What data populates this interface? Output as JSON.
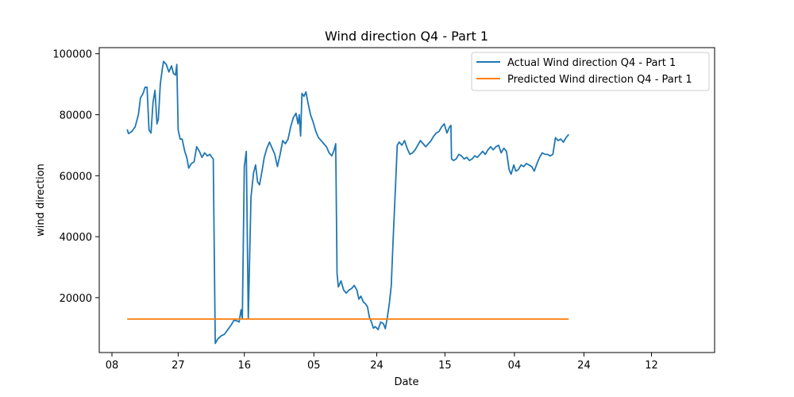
{
  "chart_data": {
    "type": "line",
    "title": "Wind direction Q4 - Part 1",
    "xlabel": "Date",
    "ylabel": "wind direction",
    "x_tick_labels": [
      "08",
      "27",
      "16",
      "05",
      "24",
      "15",
      "04",
      "24",
      "12"
    ],
    "y_tick_labels": [
      "20000",
      "40000",
      "60000",
      "80000",
      "100000"
    ],
    "ylim": [
      2000,
      102000
    ],
    "x_domain": [
      0,
      83
    ],
    "x_tick_positions": [
      0,
      10,
      20,
      30.5,
      40,
      50.3,
      60.8,
      71.3,
      81.5
    ],
    "y_ticks": [
      20000,
      40000,
      60000,
      80000,
      100000
    ],
    "grid": false,
    "legend_position": "top-right",
    "series": [
      {
        "name": "Actual Wind direction Q4 - Part 1",
        "color": "#1f77b4",
        "points": [
          [
            2.3,
            75200
          ],
          [
            2.5,
            73800
          ],
          [
            3.0,
            74500
          ],
          [
            3.5,
            76000
          ],
          [
            4.0,
            80000
          ],
          [
            4.3,
            85500
          ],
          [
            4.7,
            87000
          ],
          [
            5.0,
            89000
          ],
          [
            5.3,
            89000
          ],
          [
            5.6,
            75000
          ],
          [
            5.9,
            74000
          ],
          [
            6.2,
            84000
          ],
          [
            6.5,
            88000
          ],
          [
            6.8,
            77000
          ],
          [
            7.0,
            78500
          ],
          [
            7.3,
            90000
          ],
          [
            7.6,
            95000
          ],
          [
            7.8,
            97500
          ],
          [
            8.2,
            96500
          ],
          [
            8.6,
            94000
          ],
          [
            9.0,
            96000
          ],
          [
            9.3,
            93500
          ],
          [
            9.6,
            93000
          ],
          [
            9.8,
            96500
          ],
          [
            10.0,
            75000
          ],
          [
            10.3,
            72000
          ],
          [
            10.6,
            72000
          ],
          [
            11.0,
            68000
          ],
          [
            11.3,
            66000
          ],
          [
            11.6,
            62500
          ],
          [
            12.0,
            64000
          ],
          [
            12.4,
            64500
          ],
          [
            12.8,
            69500
          ],
          [
            13.2,
            68000
          ],
          [
            13.6,
            66000
          ],
          [
            14.0,
            67500
          ],
          [
            14.4,
            66500
          ],
          [
            14.8,
            67000
          ],
          [
            15.1,
            66000
          ],
          [
            15.3,
            65500
          ],
          [
            15.6,
            5000
          ],
          [
            16.0,
            6500
          ],
          [
            16.5,
            7500
          ],
          [
            17.0,
            8000
          ],
          [
            17.5,
            9500
          ],
          [
            18.0,
            11000
          ],
          [
            18.4,
            12500
          ],
          [
            18.8,
            12500
          ],
          [
            19.2,
            12000
          ],
          [
            19.5,
            16000
          ],
          [
            19.7,
            13000
          ],
          [
            20.0,
            63000
          ],
          [
            20.3,
            68000
          ],
          [
            20.6,
            13000
          ],
          [
            21.0,
            53000
          ],
          [
            21.4,
            61000
          ],
          [
            21.7,
            63500
          ],
          [
            22.0,
            58000
          ],
          [
            22.3,
            57000
          ],
          [
            22.7,
            62000
          ],
          [
            23.0,
            66000
          ],
          [
            23.4,
            69000
          ],
          [
            23.8,
            71000
          ],
          [
            24.2,
            69000
          ],
          [
            24.6,
            67000
          ],
          [
            25.0,
            63000
          ],
          [
            25.4,
            67000
          ],
          [
            25.8,
            71500
          ],
          [
            26.2,
            70500
          ],
          [
            26.6,
            72000
          ],
          [
            27.0,
            76000
          ],
          [
            27.4,
            79000
          ],
          [
            27.8,
            80500
          ],
          [
            28.1,
            77000
          ],
          [
            28.3,
            80000
          ],
          [
            28.5,
            73000
          ],
          [
            28.7,
            87000
          ],
          [
            29.0,
            86000
          ],
          [
            29.3,
            87500
          ],
          [
            29.6,
            84000
          ],
          [
            30.0,
            80000
          ],
          [
            30.4,
            77500
          ],
          [
            30.8,
            74500
          ],
          [
            31.2,
            72500
          ],
          [
            31.6,
            71500
          ],
          [
            32.0,
            70500
          ],
          [
            32.4,
            69500
          ],
          [
            32.8,
            67500
          ],
          [
            33.2,
            66500
          ],
          [
            33.5,
            68000
          ],
          [
            33.8,
            70500
          ],
          [
            34.0,
            28000
          ],
          [
            34.2,
            23500
          ],
          [
            34.6,
            25500
          ],
          [
            35.0,
            22500
          ],
          [
            35.4,
            21500
          ],
          [
            35.8,
            22500
          ],
          [
            36.2,
            23000
          ],
          [
            36.6,
            24000
          ],
          [
            37.0,
            22500
          ],
          [
            37.3,
            19500
          ],
          [
            37.6,
            20500
          ],
          [
            38.0,
            18500
          ],
          [
            38.3,
            18000
          ],
          [
            38.6,
            17000
          ],
          [
            38.9,
            13500
          ],
          [
            39.2,
            12000
          ],
          [
            39.5,
            10000
          ],
          [
            39.8,
            10500
          ],
          [
            40.2,
            9500
          ],
          [
            40.6,
            12000
          ],
          [
            41.0,
            11500
          ],
          [
            41.3,
            9800
          ],
          [
            41.6,
            13500
          ],
          [
            41.9,
            18000
          ],
          [
            42.2,
            24000
          ],
          [
            42.3,
            30000
          ],
          [
            42.5,
            40000
          ],
          [
            42.7,
            50000
          ],
          [
            42.9,
            60000
          ],
          [
            43.1,
            70000
          ],
          [
            43.4,
            71000
          ],
          [
            43.8,
            70000
          ],
          [
            44.2,
            71500
          ],
          [
            44.6,
            69000
          ],
          [
            45.0,
            67000
          ],
          [
            45.4,
            67500
          ],
          [
            45.8,
            68500
          ],
          [
            46.2,
            70000
          ],
          [
            46.6,
            71500
          ],
          [
            47.0,
            70500
          ],
          [
            47.4,
            69500
          ],
          [
            47.8,
            70500
          ],
          [
            48.2,
            71500
          ],
          [
            48.6,
            73000
          ],
          [
            49.0,
            74000
          ],
          [
            49.4,
            74500
          ],
          [
            49.8,
            76000
          ],
          [
            50.2,
            77000
          ],
          [
            50.6,
            74000
          ],
          [
            51.0,
            76000
          ],
          [
            51.2,
            76500
          ],
          [
            51.3,
            65500
          ],
          [
            51.6,
            65000
          ],
          [
            52.0,
            65500
          ],
          [
            52.4,
            67000
          ],
          [
            52.8,
            66500
          ],
          [
            53.2,
            65500
          ],
          [
            53.6,
            66000
          ],
          [
            54.0,
            65000
          ],
          [
            54.4,
            65500
          ],
          [
            54.8,
            66500
          ],
          [
            55.2,
            66000
          ],
          [
            55.6,
            67000
          ],
          [
            56.0,
            68000
          ],
          [
            56.4,
            67000
          ],
          [
            56.8,
            68500
          ],
          [
            57.2,
            69500
          ],
          [
            57.6,
            68500
          ],
          [
            58.0,
            69500
          ],
          [
            58.4,
            70000
          ],
          [
            58.8,
            67500
          ],
          [
            59.2,
            69000
          ],
          [
            59.6,
            68000
          ],
          [
            60.0,
            62000
          ],
          [
            60.3,
            60500
          ],
          [
            60.7,
            63500
          ],
          [
            61.0,
            61500
          ],
          [
            61.4,
            62000
          ],
          [
            61.8,
            63500
          ],
          [
            62.2,
            63000
          ],
          [
            62.6,
            64000
          ],
          [
            63.0,
            63500
          ],
          [
            63.4,
            63000
          ],
          [
            63.8,
            61500
          ],
          [
            64.2,
            64000
          ],
          [
            64.6,
            66000
          ],
          [
            65.0,
            67500
          ],
          [
            65.4,
            67000
          ],
          [
            65.8,
            67000
          ],
          [
            66.2,
            66500
          ],
          [
            66.6,
            67000
          ],
          [
            67.0,
            72500
          ],
          [
            67.4,
            71500
          ],
          [
            67.8,
            72000
          ],
          [
            68.2,
            71000
          ],
          [
            68.6,
            72500
          ],
          [
            69.0,
            73500
          ]
        ]
      },
      {
        "name": "Predicted Wind direction Q4 - Part 1",
        "color": "#ff7f0e",
        "points": [
          [
            2.3,
            13000
          ],
          [
            69.0,
            13000
          ]
        ]
      }
    ]
  }
}
